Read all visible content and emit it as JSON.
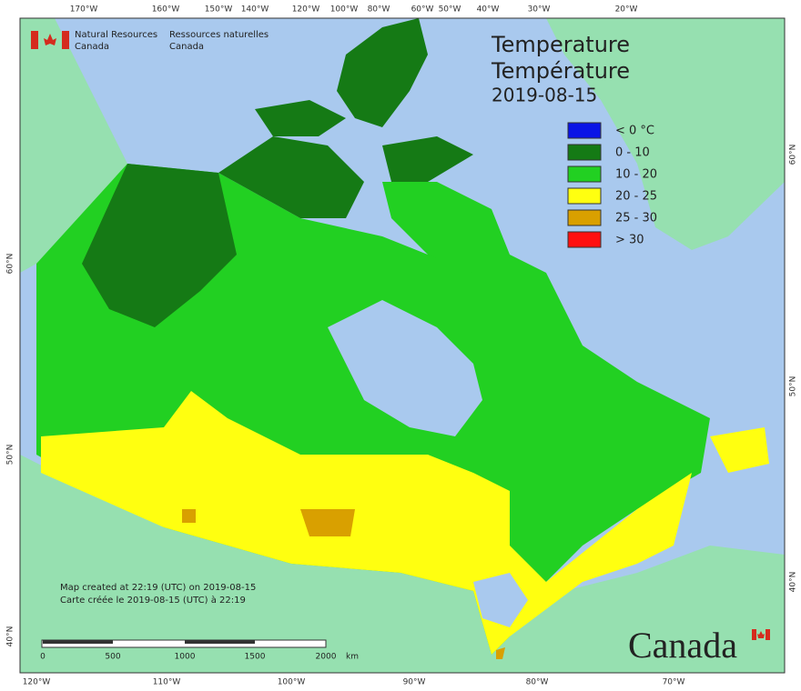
{
  "header": {
    "agency_en": [
      "Natural Resources",
      "Canada"
    ],
    "agency_fr": [
      "Ressources naturelles",
      "Canada"
    ]
  },
  "title": [
    "Temperature",
    "Température",
    "2019-08-15"
  ],
  "legend": [
    {
      "label": "< 0 °C",
      "color": "#0a14e6"
    },
    {
      "label": "0 - 10",
      "color": "#157a15"
    },
    {
      "label": "10 - 20",
      "color": "#22d022"
    },
    {
      "label": "20 - 25",
      "color": "#ffff10"
    },
    {
      "label": "25 - 30",
      "color": "#d9a000"
    },
    {
      "label": "> 30",
      "color": "#ff1010"
    }
  ],
  "graticule": {
    "top": [
      "170°W",
      "160°W",
      "150°W",
      "140°W",
      "120°W",
      "100°W",
      "80°W",
      "60°W",
      "50°W",
      "40°W",
      "30°W",
      "20°W"
    ],
    "bottom": [
      "120°W",
      "110°W",
      "100°W",
      "90°W",
      "80°W",
      "70°W"
    ],
    "left": [
      "60°N",
      "50°N",
      "40°N"
    ],
    "right": [
      "60°N",
      "50°N",
      "40°N"
    ]
  },
  "notes": [
    "Map created at 22:19 (UTC) on 2019-08-15",
    "Carte créée le 2019-08-15 (UTC) à 22:19"
  ],
  "scale": {
    "ticks": [
      0,
      500,
      1000,
      1500,
      2000
    ],
    "unit": "km"
  },
  "wordmark": "Canada"
}
